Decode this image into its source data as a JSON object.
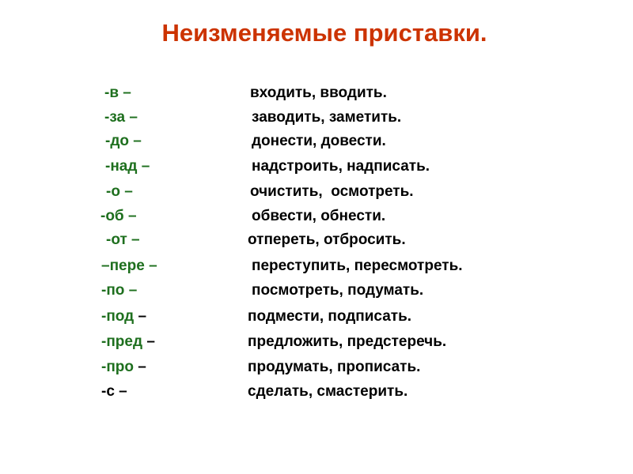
{
  "title": "Неизменяемые приставки.",
  "colors": {
    "title": "#cc3300",
    "prefix": "#1e6f1e",
    "text": "#000000"
  },
  "rows": [
    {
      "prefix": "-в",
      "dash": " –",
      "examples": "входить, вводить."
    },
    {
      "prefix": "-за",
      "dash": " –",
      "examples": "заводить, заметить."
    },
    {
      "prefix": "-до",
      "dash": " –",
      "examples": "донести, довести."
    },
    {
      "prefix": "-над",
      "dash": " –",
      "examples": "надстроить, надписать."
    },
    {
      "prefix": "-о",
      "dash": " –",
      "examples": "очистить,  осмотреть."
    },
    {
      "prefix": "-об",
      "dash": " –",
      "examples": "обвести, обнести."
    },
    {
      "prefix": "-от",
      "dash": " –",
      "examples": "отпереть, отбросить."
    },
    {
      "prefix": "–пере",
      "dash": " –",
      "examples": "переступить, пересмотреть."
    },
    {
      "prefix": "-по",
      "dash": " –",
      "examples": "посмотреть, подумать."
    },
    {
      "prefix": "-под",
      "dash": " –",
      "examples": "подмести, подписать."
    },
    {
      "prefix": "-пред",
      "dash": " –",
      "examples": "предложить, предстеречь."
    },
    {
      "prefix": "-про",
      "dash": " –",
      "examples": "продумать, прописать."
    },
    {
      "prefix": "-с",
      "dash": " –",
      "examples": "сделать, смастерить."
    }
  ]
}
